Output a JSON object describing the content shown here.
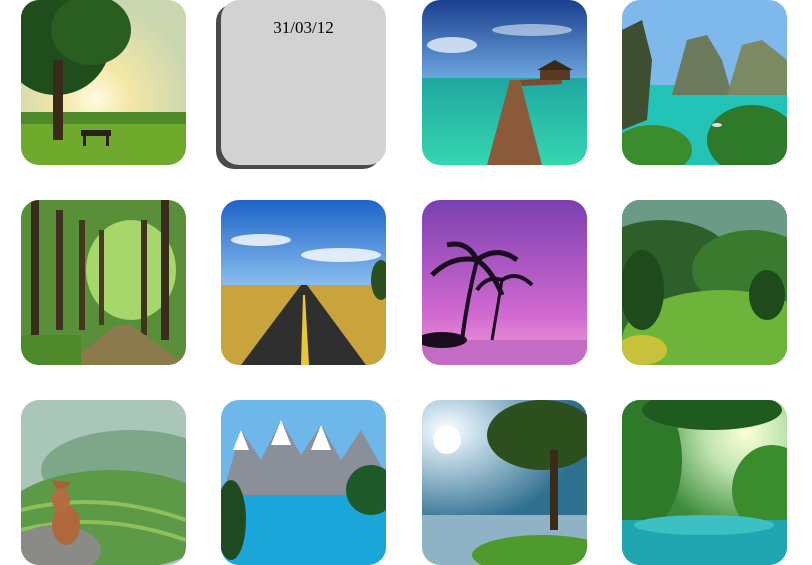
{
  "date_tile": {
    "date": "31/03/12"
  },
  "tiles": [
    {
      "scene": "park-tree-sunset"
    },
    {
      "scene": "overwater-boardwalk"
    },
    {
      "scene": "tropical-cliff-beach"
    },
    {
      "scene": "forest-path"
    },
    {
      "scene": "desert-highway"
    },
    {
      "scene": "palm-purple-sunset"
    },
    {
      "scene": "green-hills"
    },
    {
      "scene": "rice-terraces-dog"
    },
    {
      "scene": "mountain-lake"
    },
    {
      "scene": "lake-tree-sun"
    },
    {
      "scene": "jungle-river"
    }
  ]
}
